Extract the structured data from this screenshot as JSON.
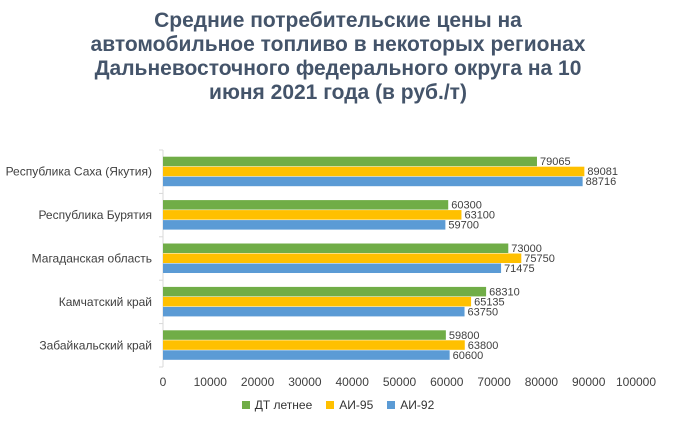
{
  "chart_data": {
    "type": "bar",
    "orientation": "horizontal",
    "title_lines": [
      "Средние потребительские цены на",
      "автомобильное топливо в некоторых регионах",
      "Дальневосточного федерального округа на 10",
      "июня 2021 года (в руб./т)"
    ],
    "categories": [
      "Республика Саха (Якутия)",
      "Республика Бурятия",
      "Магаданская область",
      "Камчатский край",
      "Забайкальский край"
    ],
    "series": [
      {
        "name": "ДТ летнее",
        "color": "#70ad47",
        "values": [
          79065,
          60300,
          73000,
          68310,
          59800
        ]
      },
      {
        "name": "АИ-95",
        "color": "#ffc000",
        "values": [
          89081,
          63100,
          75750,
          65135,
          63800
        ]
      },
      {
        "name": "АИ-92",
        "color": "#5b9bd5",
        "values": [
          88716,
          59700,
          71475,
          63750,
          60600
        ]
      }
    ],
    "xlim": [
      0,
      100000
    ],
    "xticks": [
      "0",
      "10000",
      "20000",
      "30000",
      "40000",
      "50000",
      "60000",
      "70000",
      "80000",
      "90000",
      "100000"
    ],
    "xtick_values": [
      0,
      10000,
      20000,
      30000,
      40000,
      50000,
      60000,
      70000,
      80000,
      90000,
      100000
    ],
    "grid": false,
    "legend_position": "bottom"
  }
}
